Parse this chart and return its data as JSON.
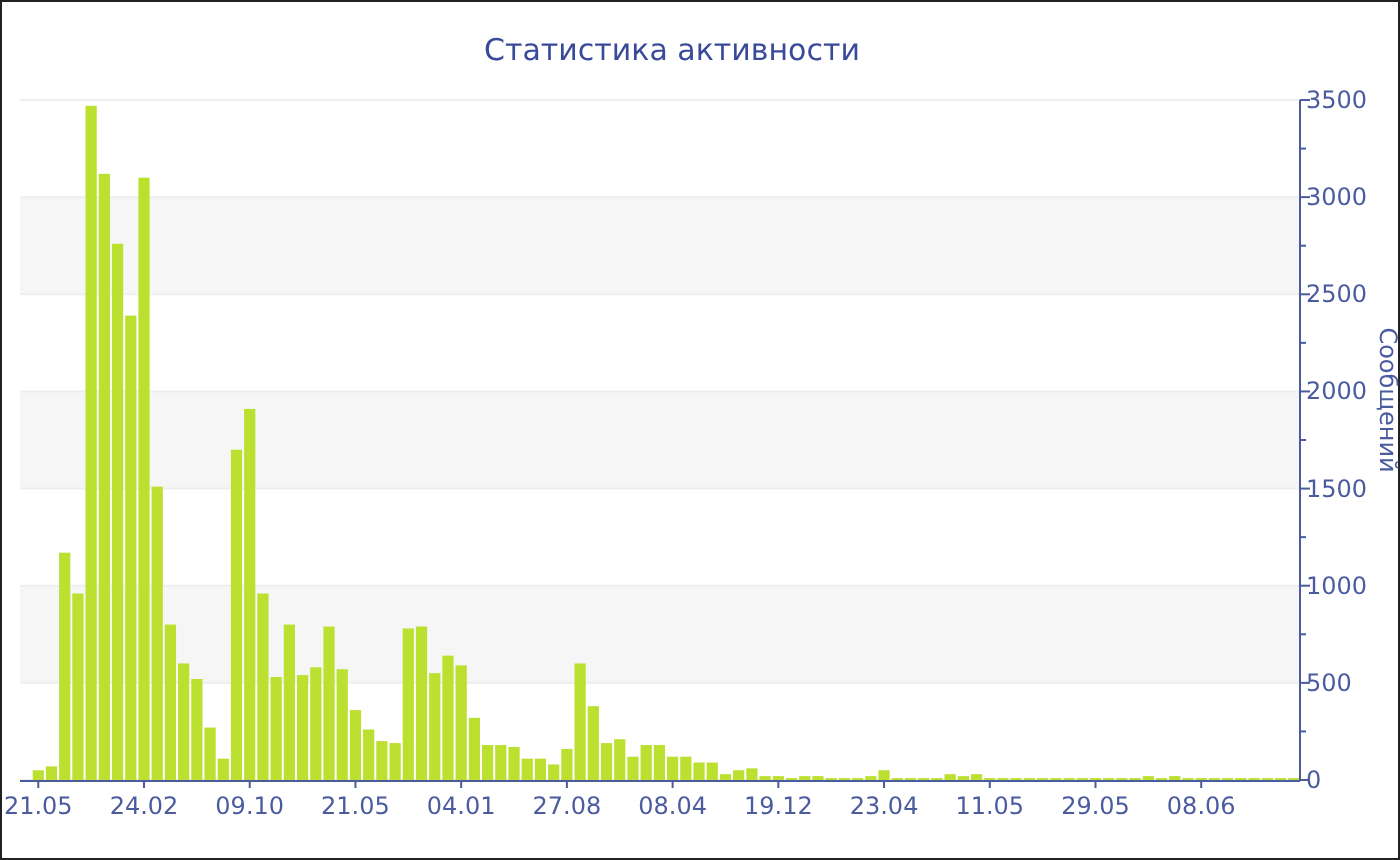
{
  "chart_data": {
    "type": "bar",
    "title": "Статистика активности",
    "ylabel": "Сообщений",
    "color": "#bce030",
    "categories": [
      "21.05",
      null,
      null,
      null,
      null,
      null,
      null,
      null,
      "24.02",
      null,
      null,
      null,
      null,
      null,
      null,
      null,
      "09.10",
      null,
      null,
      null,
      null,
      null,
      null,
      null,
      "21.05",
      null,
      null,
      null,
      null,
      null,
      null,
      null,
      "04.01",
      null,
      null,
      null,
      null,
      null,
      null,
      null,
      "27.08",
      null,
      null,
      null,
      null,
      null,
      null,
      null,
      "08.04",
      null,
      null,
      null,
      null,
      null,
      null,
      null,
      "19.12",
      null,
      null,
      null,
      null,
      null,
      null,
      null,
      "23.04",
      null,
      null,
      null,
      null,
      null,
      null,
      null,
      "11.05",
      null,
      null,
      null,
      null,
      null,
      null,
      null,
      "29.05",
      null,
      null,
      null,
      null,
      null,
      null,
      null,
      "08.06",
      null,
      null,
      null,
      null,
      null,
      null,
      null
    ],
    "values": [
      50,
      70,
      1170,
      960,
      3470,
      3120,
      2760,
      2390,
      3100,
      1510,
      800,
      600,
      520,
      270,
      110,
      1700,
      1910,
      960,
      530,
      800,
      540,
      580,
      790,
      570,
      360,
      260,
      200,
      190,
      780,
      790,
      550,
      640,
      590,
      320,
      180,
      180,
      170,
      110,
      110,
      80,
      160,
      600,
      380,
      190,
      210,
      120,
      180,
      180,
      120,
      120,
      90,
      90,
      30,
      50,
      60,
      20,
      20,
      10,
      20,
      20,
      10,
      10,
      10,
      20,
      50,
      10,
      10,
      10,
      10,
      30,
      20,
      30,
      10,
      10,
      10,
      10,
      10,
      10,
      10,
      10,
      10,
      10,
      10,
      10,
      20,
      10,
      20,
      10,
      10,
      10,
      10,
      10,
      10,
      10,
      10,
      10
    ],
    "ylim": [
      0,
      3500
    ],
    "yticks": [
      0,
      {
        "value": 250,
        "label": null
      },
      500,
      {
        "value": 750,
        "label": null
      },
      1000,
      {
        "value": 1250,
        "label": null
      },
      1500,
      {
        "value": 1750,
        "label": null
      },
      2000,
      {
        "value": 2250,
        "label": null
      },
      2500,
      {
        "value": 2750,
        "label": null
      },
      3000,
      {
        "value": 3250,
        "label": null
      },
      3500
    ],
    "grid": "y"
  }
}
